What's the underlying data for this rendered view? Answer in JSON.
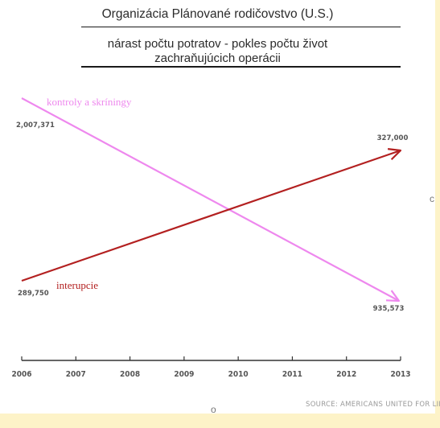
{
  "chart_data": {
    "type": "line",
    "title": "Organizácia Plánované rodičovstvo (U.S.)",
    "subtitle_line1": "nárast počtu potratov - pokles počtu život",
    "subtitle_line2": "zachraňujúcich operácii",
    "x": [
      2006,
      2013
    ],
    "xticks": [
      "2006",
      "2007",
      "2008",
      "2009",
      "2010",
      "2011",
      "2012",
      "2013"
    ],
    "series": [
      {
        "name": "kontroly a skríningy",
        "values": [
          2007371,
          935573
        ],
        "start_label": "2,007,371",
        "end_label": "935,573",
        "color": "#ee88ee"
      },
      {
        "name": "interupcie",
        "values": [
          289750,
          327000
        ],
        "start_label": "289,750",
        "end_label": "327,000",
        "color": "#b32020"
      }
    ],
    "source": "SOURCE: AMERICANS UNITED FOR LIFE."
  },
  "decor": {
    "stray_c": "c",
    "stray_o": "o"
  }
}
